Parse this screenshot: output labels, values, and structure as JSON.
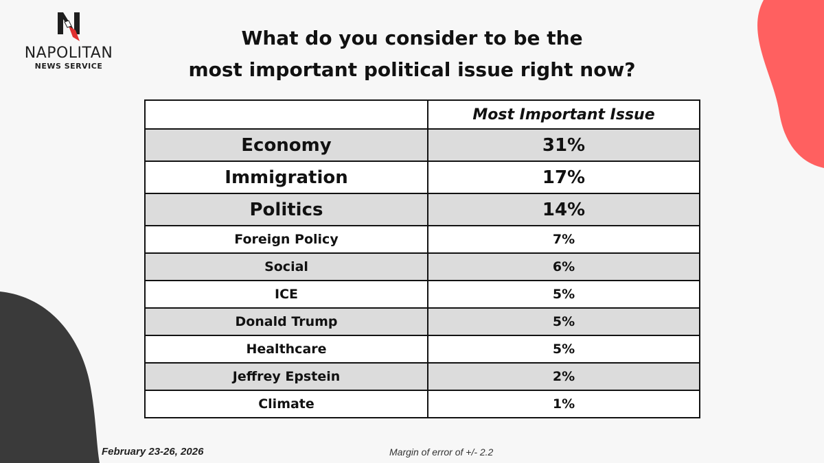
{
  "logo": {
    "name": "NAPOLITAN",
    "sub": "NEWS SERVICE"
  },
  "title": {
    "line1": "What do you consider to be the",
    "line2": "most important political issue right now?"
  },
  "colors": {
    "accent_red": "#ff6060",
    "dark": "#3a3a3a",
    "row_shade": "#dcdcdc"
  },
  "chart_data": {
    "type": "table",
    "columns": [
      "",
      "Most Important Issue"
    ],
    "rows": [
      {
        "issue": "Economy",
        "value": "31%"
      },
      {
        "issue": "Immigration",
        "value": "17%"
      },
      {
        "issue": "Politics",
        "value": "14%"
      },
      {
        "issue": "Foreign Policy",
        "value": "7%"
      },
      {
        "issue": "Social",
        "value": "6%"
      },
      {
        "issue": "ICE",
        "value": "5%"
      },
      {
        "issue": "Donald Trump",
        "value": "5%"
      },
      {
        "issue": "Healthcare",
        "value": "5%"
      },
      {
        "issue": "Jeffrey Epstein",
        "value": "2%"
      },
      {
        "issue": "Climate",
        "value": "1%"
      }
    ]
  },
  "footer": {
    "date": "February 23-26, 2026",
    "margin": "Margin of error of +/- 2.2"
  }
}
